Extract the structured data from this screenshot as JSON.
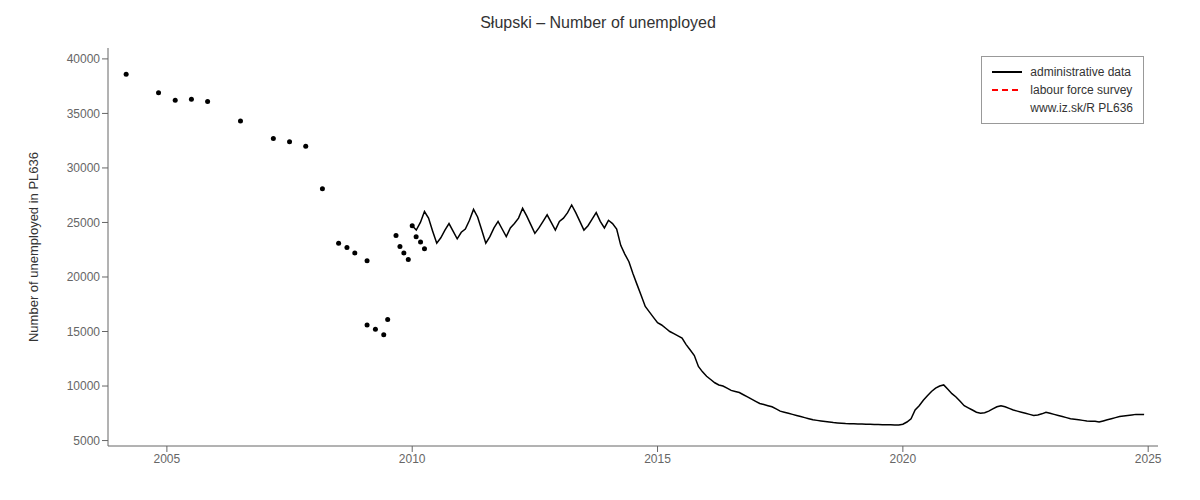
{
  "chart_data": {
    "type": "line",
    "title": "Słupski – Number of unemployed",
    "ylabel": "Number of unemployed in PL636",
    "xlim": [
      2003.8,
      2025.2
    ],
    "xticks": [
      2005,
      2010,
      2015,
      2020,
      2025
    ],
    "ylim": [
      4500,
      41000
    ],
    "yticks": [
      5000,
      10000,
      15000,
      20000,
      25000,
      30000,
      35000,
      40000
    ],
    "grid": false,
    "legend": "upper right",
    "series": [
      {
        "type": "scatter",
        "color": "#000000",
        "marker": "circle",
        "x": [
          2004.17,
          2004.83,
          2005.17,
          2005.5,
          2005.83,
          2006.5,
          2007.17,
          2007.5,
          2007.83,
          2008.17,
          2008.5,
          2008.67,
          2008.83,
          2009.08,
          2009.08,
          2009.25,
          2009.42,
          2009.5,
          2009.67,
          2009.75,
          2009.83,
          2009.92,
          2010.0,
          2010.08,
          2010.17,
          2010.25
        ],
        "values": [
          38600,
          36900,
          36200,
          36300,
          36100,
          34300,
          32700,
          32400,
          32000,
          28100,
          23100,
          22700,
          22200,
          21500,
          15600,
          15200,
          14700,
          16100,
          23800,
          22800,
          22200,
          21600,
          24700,
          23700,
          23200,
          22600
        ]
      },
      {
        "name": "administrative data",
        "type": "line",
        "color": "#000000",
        "line_style": "solid",
        "x": [
          2010.0,
          2010.083,
          2010.167,
          2010.25,
          2010.333,
          2010.417,
          2010.5,
          2010.583,
          2010.667,
          2010.75,
          2010.833,
          2010.917,
          2011.0,
          2011.083,
          2011.167,
          2011.25,
          2011.333,
          2011.417,
          2011.5,
          2011.583,
          2011.667,
          2011.75,
          2011.833,
          2011.917,
          2012.0,
          2012.083,
          2012.167,
          2012.25,
          2012.333,
          2012.417,
          2012.5,
          2012.583,
          2012.667,
          2012.75,
          2012.833,
          2012.917,
          2013.0,
          2013.083,
          2013.167,
          2013.25,
          2013.333,
          2013.417,
          2013.5,
          2013.583,
          2013.667,
          2013.75,
          2013.833,
          2013.917,
          2014.0,
          2014.083,
          2014.167,
          2014.25,
          2014.333,
          2014.417,
          2014.5,
          2014.583,
          2014.667,
          2014.75,
          2014.833,
          2014.917,
          2015.0,
          2015.083,
          2015.167,
          2015.25,
          2015.333,
          2015.417,
          2015.5,
          2015.583,
          2015.667,
          2015.75,
          2015.833,
          2015.917,
          2016.0,
          2016.083,
          2016.167,
          2016.25,
          2016.333,
          2016.417,
          2016.5,
          2016.583,
          2016.667,
          2016.75,
          2016.833,
          2016.917,
          2017.0,
          2017.083,
          2017.167,
          2017.25,
          2017.333,
          2017.417,
          2017.5,
          2017.583,
          2017.667,
          2017.75,
          2017.833,
          2017.917,
          2018.0,
          2018.083,
          2018.167,
          2018.25,
          2018.333,
          2018.417,
          2018.5,
          2018.583,
          2018.667,
          2018.75,
          2018.833,
          2018.917,
          2019.0,
          2019.083,
          2019.167,
          2019.25,
          2019.333,
          2019.417,
          2019.5,
          2019.583,
          2019.667,
          2019.75,
          2019.833,
          2019.917,
          2020.0,
          2020.083,
          2020.167,
          2020.25,
          2020.333,
          2020.417,
          2020.5,
          2020.583,
          2020.667,
          2020.75,
          2020.833,
          2020.917,
          2021.0,
          2021.083,
          2021.167,
          2021.25,
          2021.333,
          2021.417,
          2021.5,
          2021.583,
          2021.667,
          2021.75,
          2021.833,
          2021.917,
          2022.0,
          2022.083,
          2022.167,
          2022.25,
          2022.333,
          2022.417,
          2022.5,
          2022.583,
          2022.667,
          2022.75,
          2022.833,
          2022.917,
          2023.0,
          2023.083,
          2023.167,
          2023.25,
          2023.333,
          2023.417,
          2023.5,
          2023.583,
          2023.667,
          2023.75,
          2023.833,
          2023.917,
          2024.0,
          2024.083,
          2024.167,
          2024.25,
          2024.333,
          2024.417,
          2024.5,
          2024.583,
          2024.667,
          2024.75,
          2024.833,
          2024.917
        ],
        "values": [
          24700,
          24300,
          25000,
          26000,
          25400,
          24200,
          23100,
          23600,
          24300,
          24900,
          24200,
          23500,
          24100,
          24400,
          25200,
          26200,
          25500,
          24300,
          23100,
          23700,
          24500,
          25100,
          24400,
          23700,
          24500,
          24900,
          25400,
          26300,
          25600,
          24800,
          24000,
          24500,
          25100,
          25700,
          25000,
          24300,
          25100,
          25400,
          25900,
          26600,
          25900,
          25100,
          24300,
          24700,
          25300,
          25900,
          25100,
          24500,
          25200,
          24900,
          24400,
          22900,
          22100,
          21400,
          20300,
          19300,
          18300,
          17300,
          16800,
          16300,
          15800,
          15600,
          15300,
          15000,
          14800,
          14600,
          14400,
          13800,
          13300,
          12800,
          11800,
          11300,
          10900,
          10600,
          10300,
          10100,
          10000,
          9800,
          9600,
          9500,
          9400,
          9200,
          9000,
          8800,
          8600,
          8400,
          8300,
          8200,
          8100,
          7900,
          7700,
          7600,
          7500,
          7400,
          7300,
          7200,
          7100,
          7000,
          6900,
          6850,
          6800,
          6750,
          6700,
          6650,
          6620,
          6590,
          6560,
          6540,
          6530,
          6520,
          6510,
          6500,
          6490,
          6480,
          6470,
          6460,
          6450,
          6440,
          6430,
          6420,
          6500,
          6700,
          7000,
          7800,
          8200,
          8700,
          9100,
          9500,
          9800,
          10000,
          10100,
          9700,
          9300,
          9000,
          8600,
          8200,
          8000,
          7800,
          7600,
          7500,
          7550,
          7700,
          7900,
          8100,
          8200,
          8100,
          7950,
          7800,
          7700,
          7600,
          7500,
          7400,
          7300,
          7350,
          7450,
          7600,
          7500,
          7400,
          7300,
          7200,
          7100,
          7000,
          6950,
          6900,
          6850,
          6800,
          6780,
          6760,
          6700,
          6800,
          6900,
          7000,
          7100,
          7200,
          7250,
          7300,
          7350,
          7400,
          7400,
          7380
        ]
      },
      {
        "name": "labour force survey",
        "type": "line",
        "color": "#FF0000",
        "line_style": "dashed",
        "x": [],
        "values": []
      },
      {
        "name": "www.iz.sk/R PL636",
        "x": [],
        "values": []
      }
    ]
  }
}
